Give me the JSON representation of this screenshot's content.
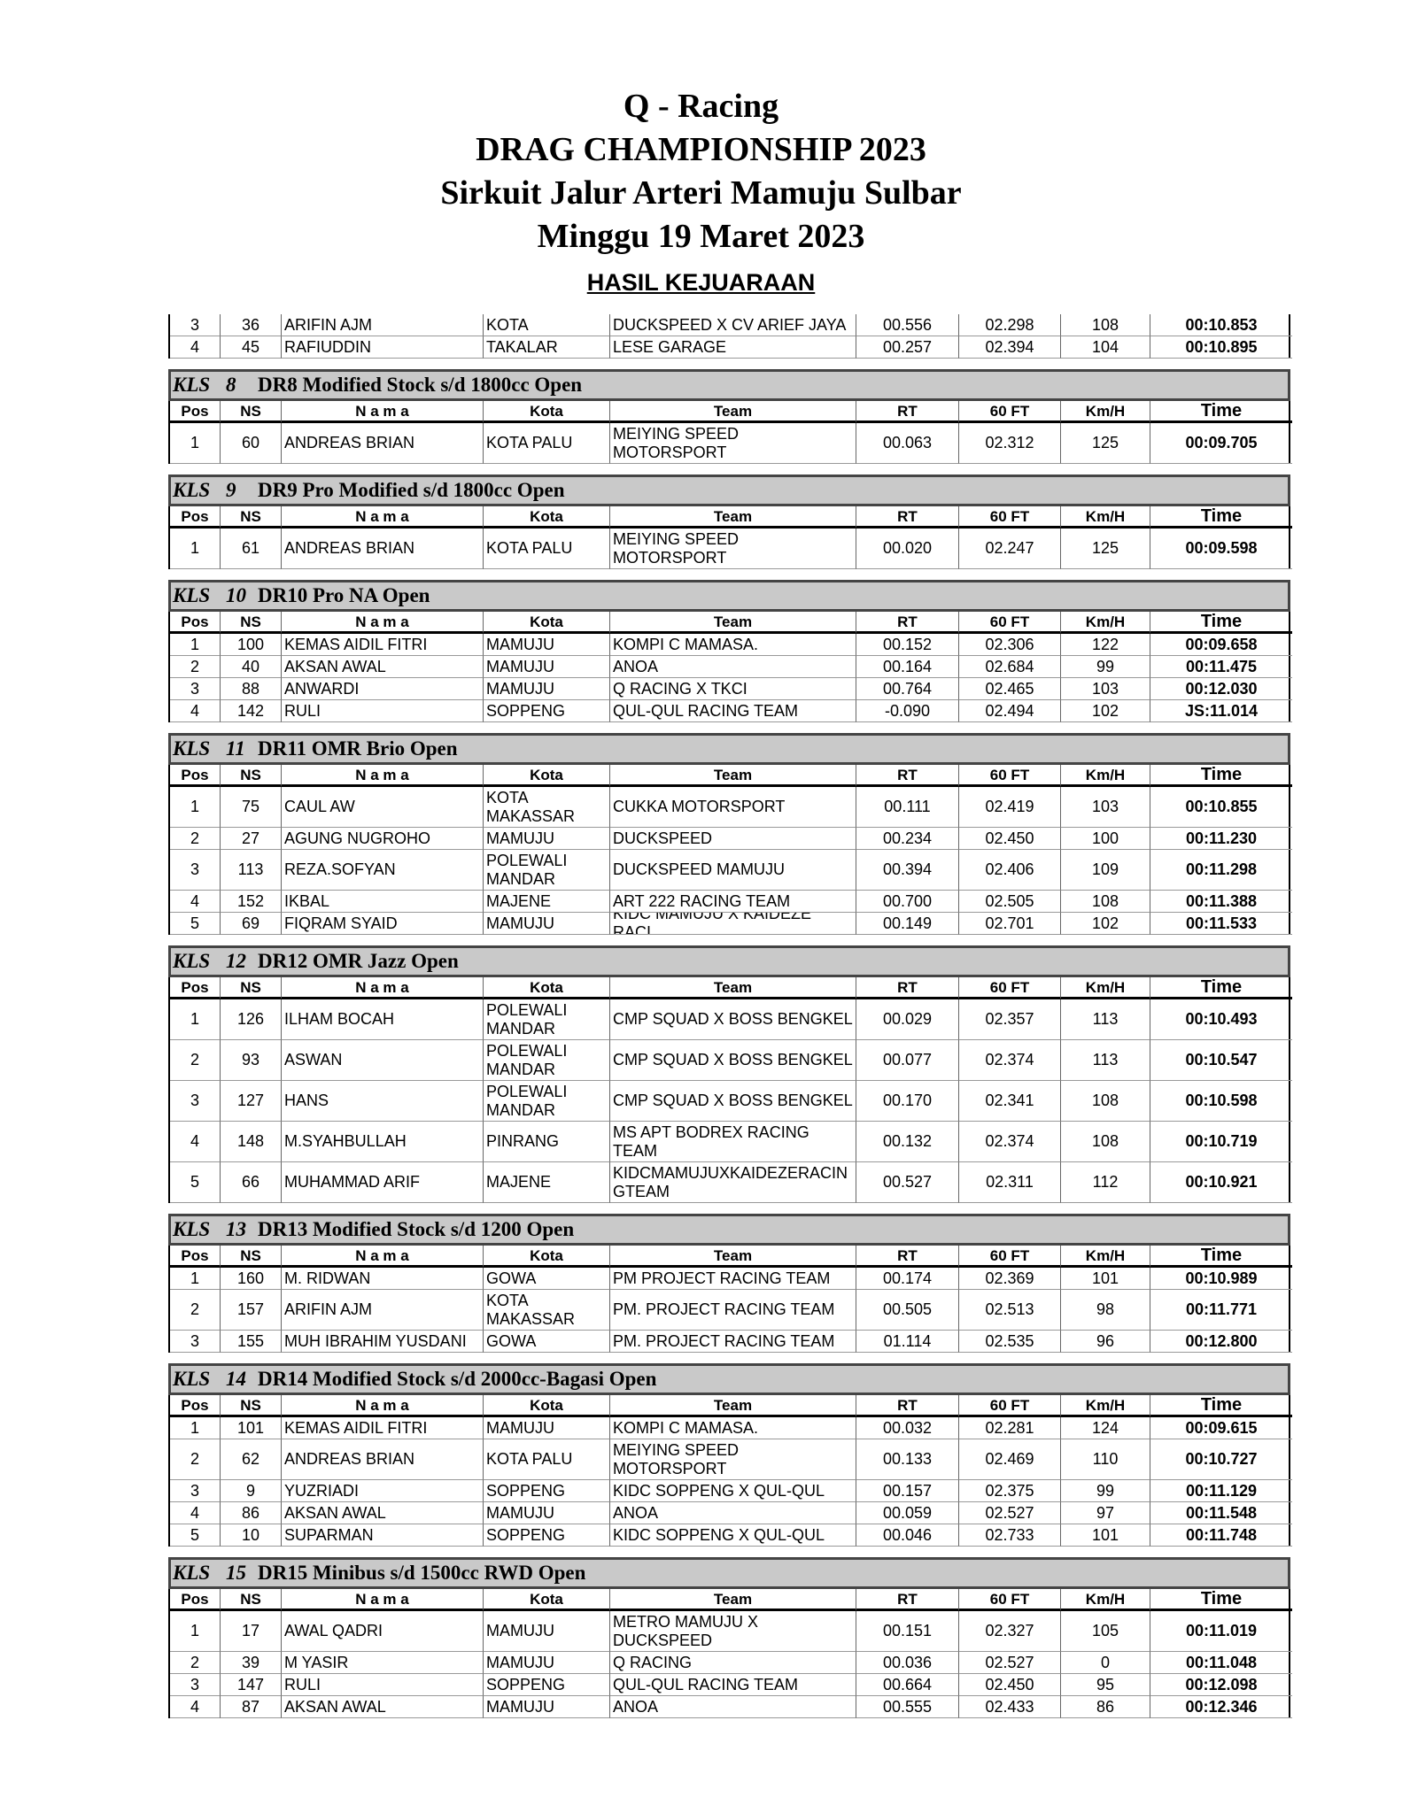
{
  "header": {
    "lines": [
      "Q - Racing",
      "DRAG CHAMPIONSHIP 2023",
      "Sirkuit Jalur Arteri Mamuju Sulbar",
      "Minggu 19 Maret 2023"
    ],
    "subtitle": "HASIL KEJUARAAN"
  },
  "kls_label": "KLS",
  "columns": [
    "Pos",
    "NS",
    "N a m a",
    "Kota",
    "Team",
    "RT",
    "60 FT",
    "Km/H",
    "Time"
  ],
  "top_rows": [
    [
      "3",
      "36",
      "ARIFIN AJM",
      "KOTA",
      "DUCKSPEED X CV ARIEF JAYA",
      "00.556",
      "02.298",
      "108",
      "00:10.853"
    ],
    [
      "4",
      "45",
      "RAFIUDDIN",
      "TAKALAR",
      "LESE GARAGE",
      "00.257",
      "02.394",
      "104",
      "00:10.895"
    ]
  ],
  "sections": [
    {
      "kls": "8",
      "name": "DR8 Modified Stock s/d 1800cc Open",
      "rows": [
        [
          "1",
          "60",
          "ANDREAS BRIAN",
          "KOTA PALU",
          "MEIYING SPEED\nMOTORSPORT",
          "00.063",
          "02.312",
          "125",
          "00:09.705"
        ]
      ]
    },
    {
      "kls": "9",
      "name": "DR9 Pro Modified s/d 1800cc Open",
      "rows": [
        [
          "1",
          "61",
          "ANDREAS BRIAN",
          "KOTA PALU",
          "MEIYING SPEED\nMOTORSPORT",
          "00.020",
          "02.247",
          "125",
          "00:09.598"
        ]
      ]
    },
    {
      "kls": "10",
      "name": "DR10 Pro NA Open",
      "rows": [
        [
          "1",
          "100",
          "KEMAS AIDIL FITRI",
          "MAMUJU",
          "KOMPI C MAMASA.",
          "00.152",
          "02.306",
          "122",
          "00:09.658"
        ],
        [
          "2",
          "40",
          "AKSAN AWAL",
          "MAMUJU",
          "ANOA",
          "00.164",
          "02.684",
          "99",
          "00:11.475"
        ],
        [
          "3",
          "88",
          "ANWARDI",
          "MAMUJU",
          "Q RACING X TKCI",
          "00.764",
          "02.465",
          "103",
          "00:12.030"
        ],
        [
          "4",
          "142",
          "RULI",
          "SOPPENG",
          "QUL-QUL RACING TEAM",
          "-0.090",
          "02.494",
          "102",
          "JS:11.014"
        ]
      ]
    },
    {
      "kls": "11",
      "name": "DR11 OMR Brio Open",
      "rows": [
        [
          "1",
          "75",
          "CAUL AW",
          "KOTA\nMAKASSAR",
          "CUKKA MOTORSPORT",
          "00.111",
          "02.419",
          "103",
          "00:10.855"
        ],
        [
          "2",
          "27",
          "AGUNG NUGROHO",
          "MAMUJU",
          "DUCKSPEED",
          "00.234",
          "02.450",
          "100",
          "00:11.230"
        ],
        [
          "3",
          "113",
          "REZA.SOFYAN",
          "POLEWALI\nMANDAR",
          "DUCKSPEED MAMUJU",
          "00.394",
          "02.406",
          "109",
          "00:11.298"
        ],
        [
          "4",
          "152",
          "IKBAL",
          "MAJENE",
          "ART 222 RACING TEAM",
          "00.700",
          "02.505",
          "108",
          "00:11.388"
        ],
        [
          "5",
          "69",
          "FIQRAM SYAID",
          "MAMUJU",
          "KIDC MAMUJU X KAIDEZE RACI",
          "00.149",
          "02.701",
          "102",
          "00:11.533"
        ]
      ]
    },
    {
      "kls": "12",
      "name": "DR12 OMR Jazz Open",
      "rows": [
        [
          "1",
          "126",
          "ILHAM BOCAH",
          "POLEWALI\nMANDAR",
          "CMP SQUAD X BOSS BENGKEL",
          "00.029",
          "02.357",
          "113",
          "00:10.493"
        ],
        [
          "2",
          "93",
          "ASWAN",
          "POLEWALI\nMANDAR",
          "CMP SQUAD X BOSS BENGKEL",
          "00.077",
          "02.374",
          "113",
          "00:10.547"
        ],
        [
          "3",
          "127",
          "HANS",
          "POLEWALI\nMANDAR",
          "CMP SQUAD X BOSS BENGKEL",
          "00.170",
          "02.341",
          "108",
          "00:10.598"
        ],
        [
          "4",
          "148",
          "M.SYAHBULLAH",
          "PINRANG",
          "MS APT BODREX RACING\nTEAM",
          "00.132",
          "02.374",
          "108",
          "00:10.719"
        ],
        [
          "5",
          "66",
          "MUHAMMAD ARIF",
          "MAJENE",
          "KIDCMAMUJUXKAIDEZERACIN\nGTEAM",
          "00.527",
          "02.311",
          "112",
          "00:10.921"
        ]
      ]
    },
    {
      "kls": "13",
      "name": "DR13 Modified Stock s/d 1200 Open",
      "rows": [
        [
          "1",
          "160",
          "M. RIDWAN",
          "GOWA",
          "PM PROJECT RACING TEAM",
          "00.174",
          "02.369",
          "101",
          "00:10.989"
        ],
        [
          "2",
          "157",
          "ARIFIN AJM",
          "KOTA\nMAKASSAR",
          "PM. PROJECT RACING TEAM",
          "00.505",
          "02.513",
          "98",
          "00:11.771"
        ],
        [
          "3",
          "155",
          "MUH IBRAHIM YUSDANI",
          "GOWA",
          "PM. PROJECT RACING TEAM",
          "01.114",
          "02.535",
          "96",
          "00:12.800"
        ]
      ]
    },
    {
      "kls": "14",
      "name": "DR14 Modified Stock s/d 2000cc-Bagasi Open",
      "rows": [
        [
          "1",
          "101",
          "KEMAS AIDIL FITRI",
          "MAMUJU",
          "KOMPI C MAMASA.",
          "00.032",
          "02.281",
          "124",
          "00:09.615"
        ],
        [
          "2",
          "62",
          "ANDREAS BRIAN",
          "KOTA PALU",
          "MEIYING SPEED\nMOTORSPORT",
          "00.133",
          "02.469",
          "110",
          "00:10.727"
        ],
        [
          "3",
          "9",
          "YUZRIADI",
          "SOPPENG",
          "KIDC SOPPENG X QUL-QUL",
          "00.157",
          "02.375",
          "99",
          "00:11.129"
        ],
        [
          "4",
          "86",
          "AKSAN AWAL",
          "MAMUJU",
          "ANOA",
          "00.059",
          "02.527",
          "97",
          "00:11.548"
        ],
        [
          "5",
          "10",
          "SUPARMAN",
          "SOPPENG",
          "KIDC SOPPENG X QUL-QUL",
          "00.046",
          "02.733",
          "101",
          "00:11.748"
        ]
      ]
    },
    {
      "kls": "15",
      "name": "DR15 Minibus s/d 1500cc RWD Open",
      "rows": [
        [
          "1",
          "17",
          "AWAL QADRI",
          "MAMUJU",
          "METRO MAMUJU X\nDUCKSPEED",
          "00.151",
          "02.327",
          "105",
          "00:11.019"
        ],
        [
          "2",
          "39",
          "M YASIR",
          "MAMUJU",
          "Q RACING",
          "00.036",
          "02.527",
          "0",
          "00:11.048"
        ],
        [
          "3",
          "147",
          "RULI",
          "SOPPENG",
          "QUL-QUL RACING TEAM",
          "00.664",
          "02.450",
          "95",
          "00:12.098"
        ],
        [
          "4",
          "87",
          "AKSAN AWAL",
          "MAMUJU",
          "ANOA",
          "00.555",
          "02.433",
          "86",
          "00:12.346"
        ]
      ]
    }
  ]
}
